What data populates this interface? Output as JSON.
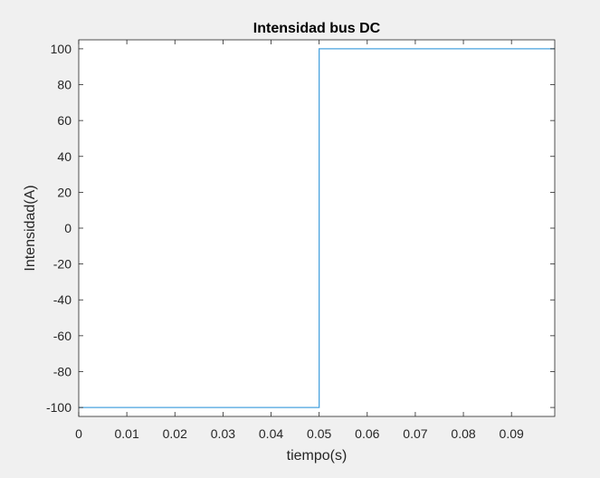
{
  "colors": {
    "figure_background": "#f0f0f0",
    "axes_background": "#ffffff",
    "axis_color": "#262626",
    "series_color": "#4aa3df"
  },
  "chart_data": {
    "type": "line",
    "title": "Intensidad bus DC",
    "xlabel": "tiempo(s)",
    "ylabel": "Intensidad(A)",
    "xlim": [
      0,
      0.099
    ],
    "ylim": [
      -105,
      105
    ],
    "xticks": [
      0,
      0.01,
      0.02,
      0.03,
      0.04,
      0.05,
      0.06,
      0.07,
      0.08,
      0.09
    ],
    "xtick_labels": [
      "0",
      "0.01",
      "0.02",
      "0.03",
      "0.04",
      "0.05",
      "0.06",
      "0.07",
      "0.08",
      "0.09"
    ],
    "yticks": [
      -100,
      -80,
      -60,
      -40,
      -20,
      0,
      20,
      40,
      60,
      80,
      100
    ],
    "ytick_labels": [
      "-100",
      "-80",
      "-60",
      "-40",
      "-20",
      "0",
      "20",
      "40",
      "60",
      "80",
      "100"
    ],
    "grid": false,
    "legend": "none",
    "series": [
      {
        "x": [
          0,
          0.05,
          0.05,
          0.099
        ],
        "y": [
          -100,
          -100,
          100,
          100
        ]
      }
    ]
  }
}
